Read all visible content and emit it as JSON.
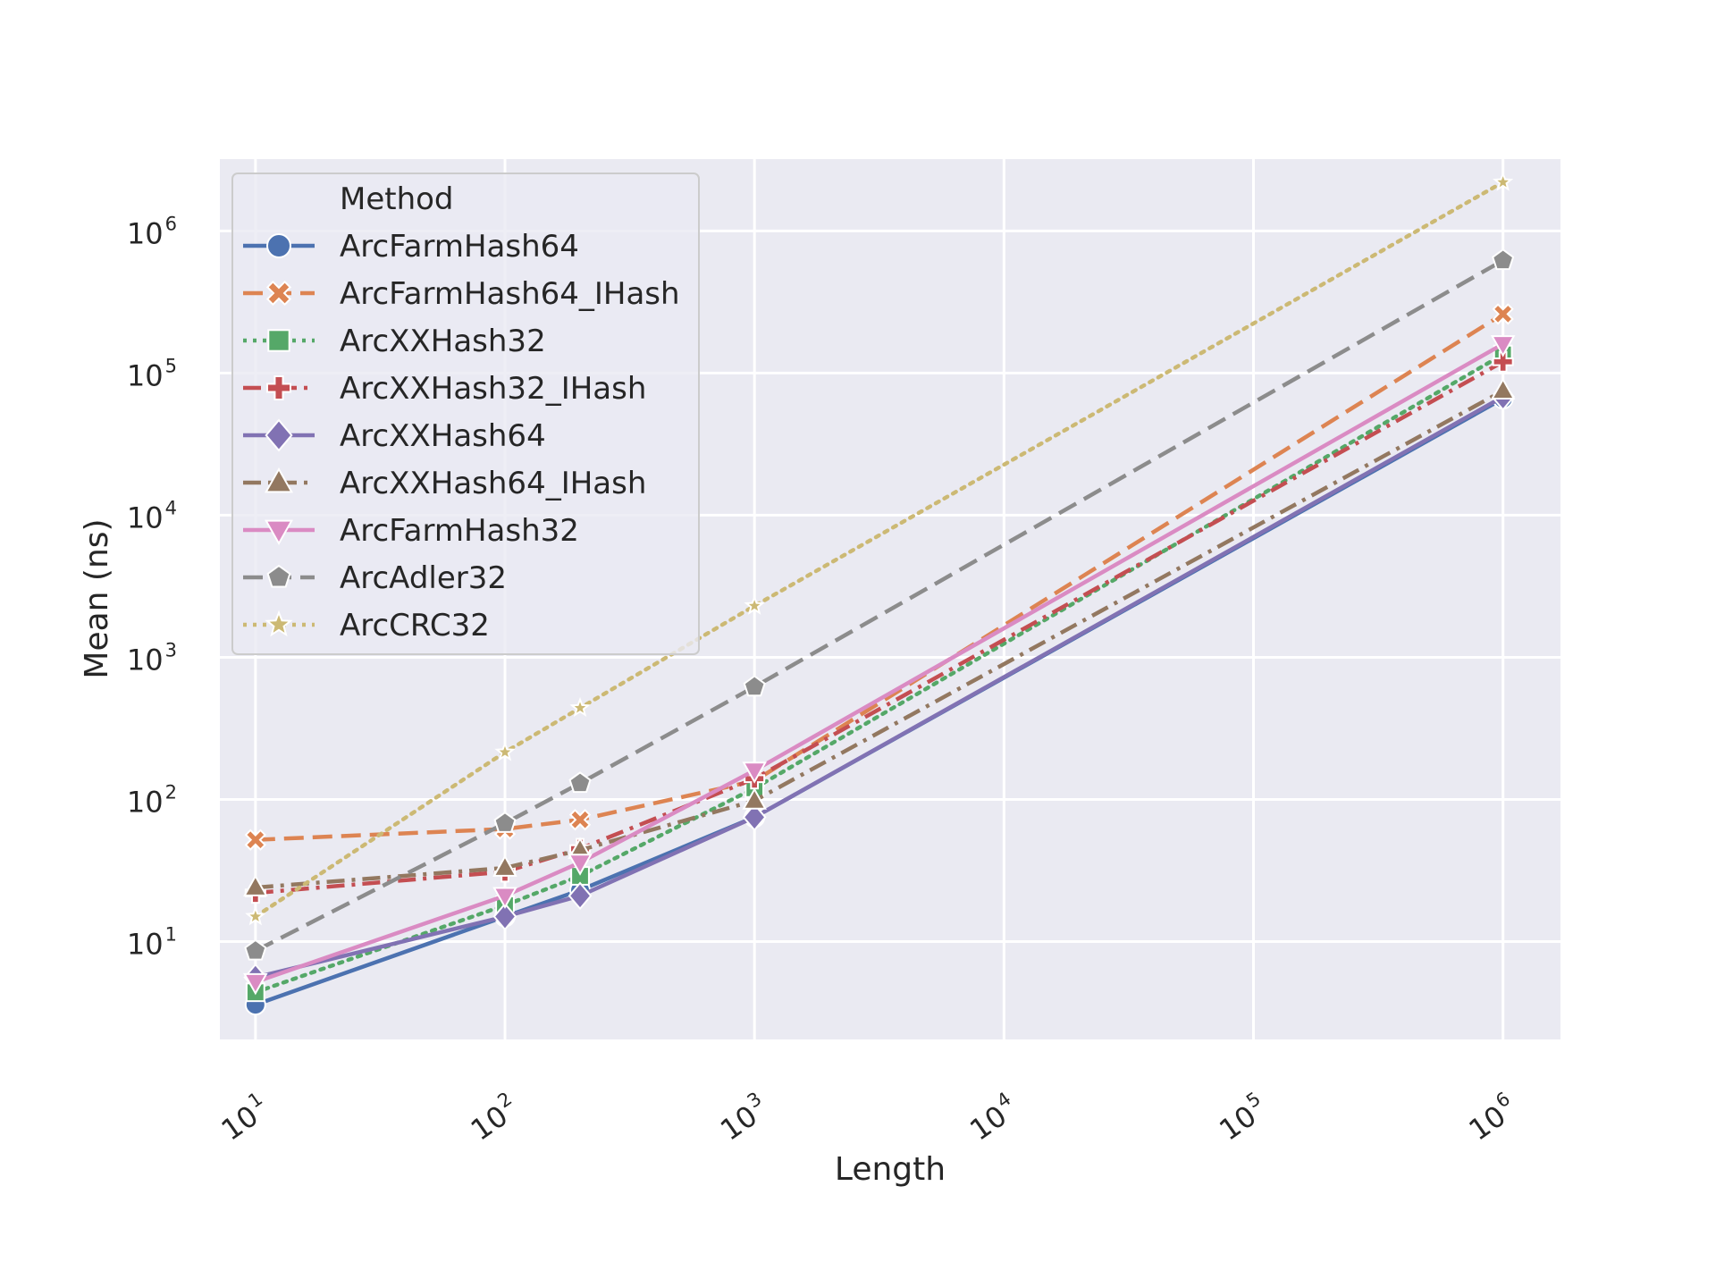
{
  "chart_data": {
    "type": "line",
    "title": "",
    "xlabel": "Length",
    "ylabel": "Mean (ns)",
    "xscale": "log",
    "yscale": "log",
    "xlim": [
      7.2,
      1700000
    ],
    "ylim": [
      2.05,
      3200000
    ],
    "grid": true,
    "x_ticks": [
      {
        "value": 10,
        "base": "10",
        "exp": "1"
      },
      {
        "value": 100,
        "base": "10",
        "exp": "2"
      },
      {
        "value": 1000,
        "base": "10",
        "exp": "3"
      },
      {
        "value": 10000,
        "base": "10",
        "exp": "4"
      },
      {
        "value": 100000,
        "base": "10",
        "exp": "5"
      },
      {
        "value": 1000000,
        "base": "10",
        "exp": "6"
      }
    ],
    "y_ticks": [
      {
        "value": 10,
        "base": "10",
        "exp": "1"
      },
      {
        "value": 100,
        "base": "10",
        "exp": "2"
      },
      {
        "value": 1000,
        "base": "10",
        "exp": "3"
      },
      {
        "value": 10000,
        "base": "10",
        "exp": "4"
      },
      {
        "value": 100000,
        "base": "10",
        "exp": "5"
      },
      {
        "value": 1000000,
        "base": "10",
        "exp": "6"
      }
    ],
    "legend": {
      "title": "Method",
      "position": "upper-left"
    },
    "x": [
      10,
      100,
      200,
      1000,
      1000000
    ],
    "series": [
      {
        "name": "ArcFarmHash64",
        "color": "#4c72b0",
        "dash": "solid",
        "marker": "circle",
        "values": [
          3.6,
          15,
          23,
          75,
          66000
        ]
      },
      {
        "name": "ArcFarmHash64_IHash",
        "color": "#dd8452",
        "dash": "dashed",
        "marker": "x",
        "values": [
          52,
          62,
          72,
          135,
          260000
        ]
      },
      {
        "name": "ArcXXHash32",
        "color": "#55a868",
        "dash": "dotted",
        "marker": "square",
        "values": [
          4.4,
          18,
          29,
          120,
          135000
        ]
      },
      {
        "name": "ArcXXHash32_IHash",
        "color": "#c44e52",
        "dash": "dashdot",
        "marker": "plus",
        "values": [
          22,
          31,
          45,
          140,
          120000
        ]
      },
      {
        "name": "ArcXXHash64",
        "color": "#8172b3",
        "dash": "solid",
        "marker": "diamond",
        "values": [
          5.6,
          15,
          21,
          75,
          68000
        ]
      },
      {
        "name": "ArcXXHash64_IHash",
        "color": "#937860",
        "dash": "dashdot",
        "marker": "triangle-up",
        "values": [
          24,
          33,
          44,
          98,
          75000
        ]
      },
      {
        "name": "ArcFarmHash32",
        "color": "#da8bc3",
        "dash": "solid",
        "marker": "triangle-down",
        "values": [
          5.2,
          21,
          36,
          160,
          160000
        ]
      },
      {
        "name": "ArcAdler32",
        "color": "#8c8c8c",
        "dash": "dashed",
        "marker": "pentagon",
        "values": [
          8.6,
          68,
          130,
          620,
          620000
        ]
      },
      {
        "name": "ArcCRC32",
        "color": "#ccb974",
        "dash": "dotted",
        "marker": "star",
        "values": [
          15,
          215,
          440,
          2300,
          2200000
        ]
      }
    ]
  }
}
